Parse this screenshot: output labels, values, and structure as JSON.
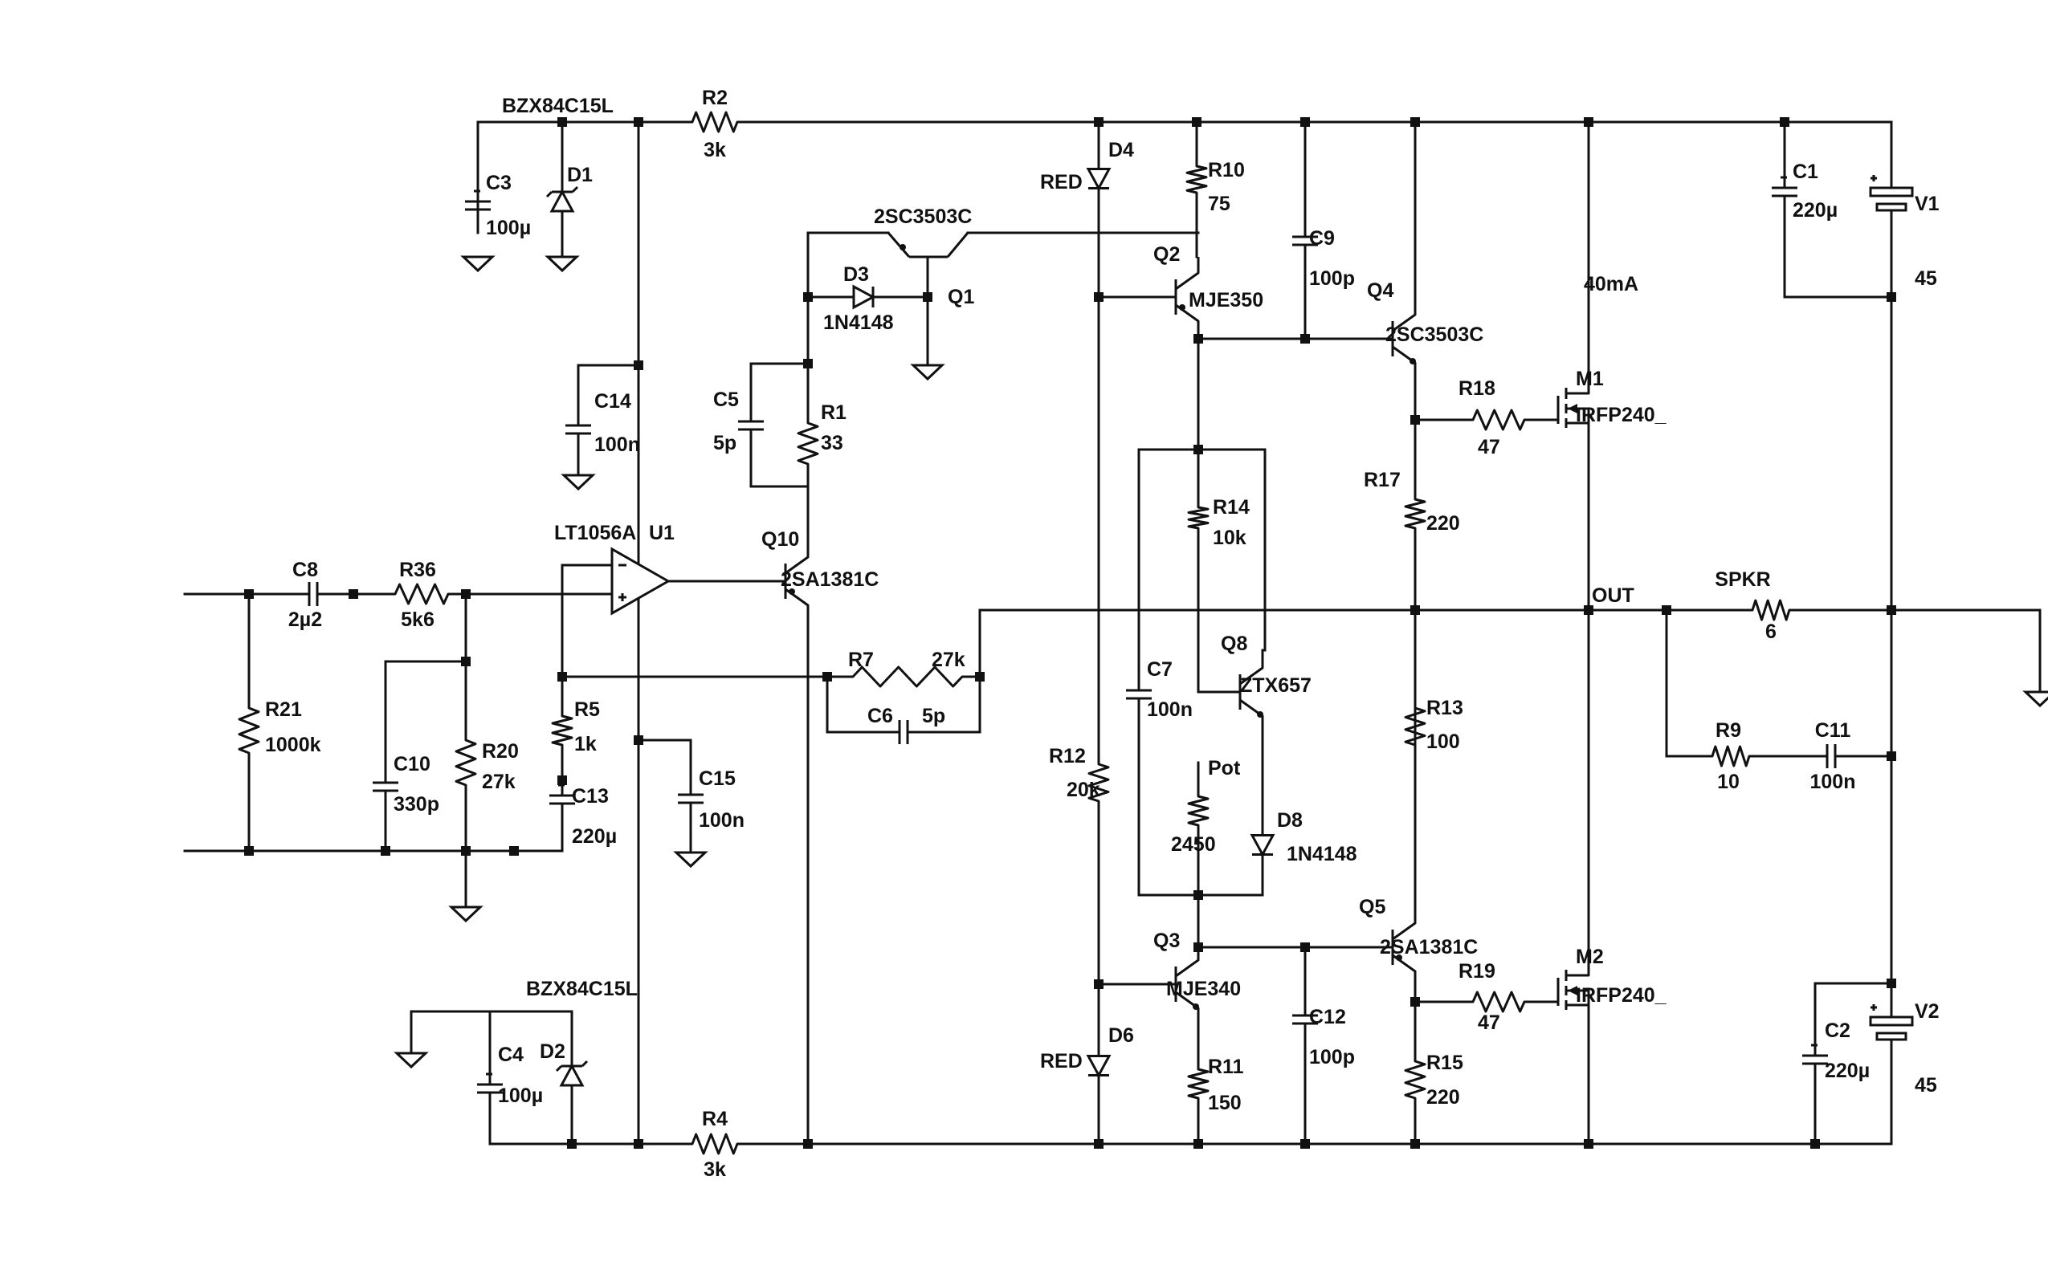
{
  "components": [
    {
      "id": "D1",
      "ref": "D1",
      "value": "BZX84C15L"
    },
    {
      "id": "D2",
      "ref": "D2",
      "value": "BZX84C15L"
    },
    {
      "id": "C3",
      "ref": "C3",
      "value": "100µ"
    },
    {
      "id": "C4",
      "ref": "C4",
      "value": "100µ"
    },
    {
      "id": "R2",
      "ref": "R2",
      "value": "3k"
    },
    {
      "id": "R4",
      "ref": "R4",
      "value": "3k"
    },
    {
      "id": "C14",
      "ref": "C14",
      "value": "100n"
    },
    {
      "id": "C15",
      "ref": "C15",
      "value": "100n"
    },
    {
      "id": "U1",
      "ref": "U1",
      "value": "LT1056A"
    },
    {
      "id": "C8",
      "ref": "C8",
      "value": "2µ2"
    },
    {
      "id": "R36",
      "ref": "R36",
      "value": "5k6"
    },
    {
      "id": "R21",
      "ref": "R21",
      "value": "1000k"
    },
    {
      "id": "C10",
      "ref": "C10",
      "value": "330p"
    },
    {
      "id": "R20",
      "ref": "R20",
      "value": "27k"
    },
    {
      "id": "R5",
      "ref": "R5",
      "value": "1k"
    },
    {
      "id": "C13",
      "ref": "C13",
      "value": "220µ"
    },
    {
      "id": "R7",
      "ref": "R7",
      "value": "27k"
    },
    {
      "id": "C6",
      "ref": "C6",
      "value": "5p"
    },
    {
      "id": "Q1",
      "ref": "Q1",
      "value": "2SC3503C"
    },
    {
      "id": "D3",
      "ref": "D3",
      "value": "1N4148"
    },
    {
      "id": "C5",
      "ref": "C5",
      "value": "5p"
    },
    {
      "id": "R1",
      "ref": "R1",
      "value": "33"
    },
    {
      "id": "Q10",
      "ref": "Q10",
      "value": "2SA1381C"
    },
    {
      "id": "D4",
      "ref": "D4",
      "value": "RED"
    },
    {
      "id": "D6",
      "ref": "D6",
      "value": "RED"
    },
    {
      "id": "R12",
      "ref": "R12",
      "value": "20k"
    },
    {
      "id": "R10",
      "ref": "R10",
      "value": "75"
    },
    {
      "id": "Q2",
      "ref": "Q2",
      "value": "MJE350"
    },
    {
      "id": "Q3",
      "ref": "Q3",
      "value": "MJE340"
    },
    {
      "id": "R11",
      "ref": "R11",
      "value": "150"
    },
    {
      "id": "R14",
      "ref": "R14",
      "value": "10k"
    },
    {
      "id": "Q8",
      "ref": "Q8",
      "value": "ZTX657"
    },
    {
      "id": "C7",
      "ref": "C7",
      "value": "100n"
    },
    {
      "id": "Pot",
      "ref": "Pot",
      "value": "2450"
    },
    {
      "id": "D8",
      "ref": "D8",
      "value": "1N4148"
    },
    {
      "id": "C9",
      "ref": "C9",
      "value": "100p"
    },
    {
      "id": "C12",
      "ref": "C12",
      "value": "100p"
    },
    {
      "id": "Q4",
      "ref": "Q4",
      "value": "2SC3503C"
    },
    {
      "id": "Q5",
      "ref": "Q5",
      "value": "2SA1381C"
    },
    {
      "id": "R17",
      "ref": "R17",
      "value": "220"
    },
    {
      "id": "R13",
      "ref": "R13",
      "value": "100"
    },
    {
      "id": "R15",
      "ref": "R15",
      "value": "220"
    },
    {
      "id": "R18",
      "ref": "R18",
      "value": "47"
    },
    {
      "id": "R19",
      "ref": "R19",
      "value": "47"
    },
    {
      "id": "M1",
      "ref": "M1",
      "value": "IRFP240_"
    },
    {
      "id": "M2",
      "ref": "M2",
      "value": "IRFP240_"
    },
    {
      "id": "SPKR",
      "ref": "SPKR",
      "value": "6"
    },
    {
      "id": "R9",
      "ref": "R9",
      "value": "10"
    },
    {
      "id": "C11",
      "ref": "C11",
      "value": "100n"
    },
    {
      "id": "C1",
      "ref": "C1",
      "value": "220µ"
    },
    {
      "id": "C2",
      "ref": "C2",
      "value": "220µ"
    },
    {
      "id": "V1",
      "ref": "V1",
      "value": "45"
    },
    {
      "id": "V2",
      "ref": "V2",
      "value": "45"
    }
  ],
  "net_labels": {
    "out": "OUT",
    "bias_current": "40mA"
  }
}
